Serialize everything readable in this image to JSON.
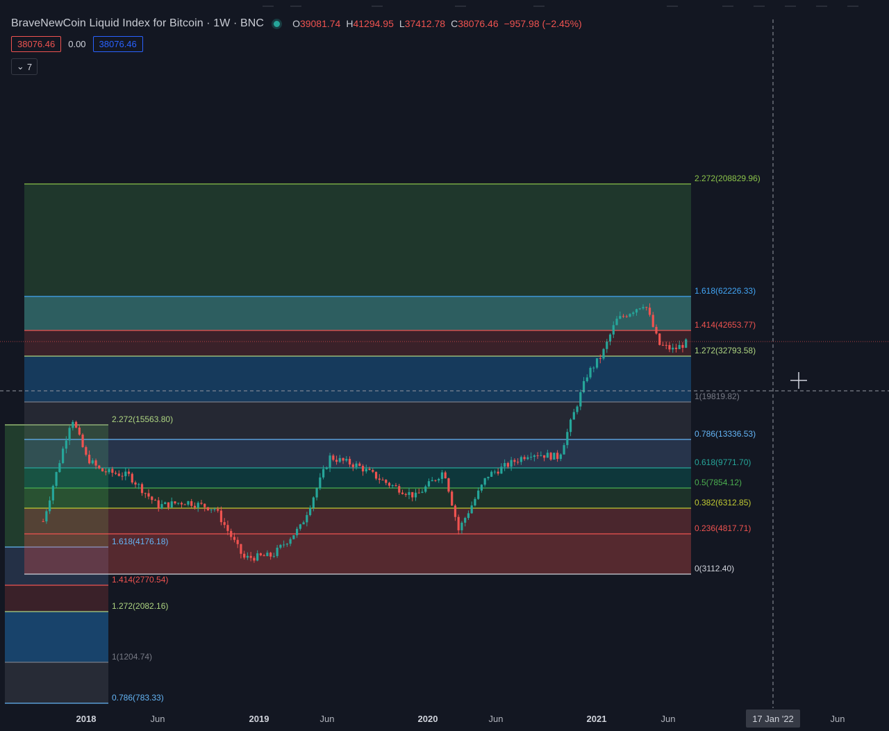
{
  "legend": {
    "title": "BraveNewCoin Liquid Index for Bitcoin · 1W · BNC",
    "open_key": "O",
    "open": "39081.74",
    "high_key": "H",
    "high": "41294.95",
    "low_key": "L",
    "low": "37412.78",
    "close_key": "C",
    "close": "38076.46",
    "change": "−957.98 (−2.45%)"
  },
  "indicator": {
    "value1": "38076.46",
    "value2": "0.00",
    "value3": "38076.46"
  },
  "collapse": {
    "chevron": "⌄",
    "count": "7"
  },
  "time_axis": {
    "labels": [
      "2018",
      "Jun",
      "2019",
      "Jun",
      "2020",
      "Jun",
      "2021",
      "Jun",
      "Jun"
    ],
    "crosshair_date": "17 Jan '22"
  },
  "colors": {
    "background": "#131722",
    "up": "#26a69a",
    "down": "#ef5350"
  },
  "fib_large": [
    {
      "label": "2.272(208829.96)",
      "color": "#8bc34a"
    },
    {
      "label": "1.618(62226.33)",
      "color": "#42a5f5"
    },
    {
      "label": "1.414(42653.77)",
      "color": "#ef5350"
    },
    {
      "label": "1.272(32793.58)",
      "color": "#aed581"
    },
    {
      "label": "1(19819.82)",
      "color": "#787b86"
    },
    {
      "label": "0.786(13336.53)",
      "color": "#64b5f6"
    },
    {
      "label": "0.618(9771.70)",
      "color": "#26a69a"
    },
    {
      "label": "0.5(7854.12)",
      "color": "#4caf50"
    },
    {
      "label": "0.382(6312.85)",
      "color": "#c0ca33"
    },
    {
      "label": "0.236(4817.71)",
      "color": "#ef5350"
    },
    {
      "label": "0(3112.40)",
      "color": "#d1d4dc"
    }
  ],
  "fib_small": [
    {
      "label": "2.272(15563.80)",
      "color": "#aed581"
    },
    {
      "label": "1.618(4176.18)",
      "color": "#64b5f6"
    },
    {
      "label": "1.414(2770.54)",
      "color": "#ef5350"
    },
    {
      "label": "1.272(2082.16)",
      "color": "#aed581"
    },
    {
      "label": "1(1204.74)",
      "color": "#787b86"
    },
    {
      "label": "0.786(783.33)",
      "color": "#64b5f6"
    }
  ],
  "chart_data": {
    "type": "candlestick",
    "symbol": "BraveNewCoin Liquid Index for Bitcoin",
    "interval": "1W",
    "x_ticks": [
      "2018",
      "Jun",
      "2019",
      "Jun",
      "2020",
      "Jun",
      "2021",
      "Jun",
      "17 Jan '22",
      "Jun"
    ],
    "close_path": [
      [
        "2017-10",
        5500
      ],
      [
        "2017-12",
        17000
      ],
      [
        "2018-01",
        11000
      ],
      [
        "2018-02",
        9500
      ],
      [
        "2018-04",
        9000
      ],
      [
        "2018-06",
        6500
      ],
      [
        "2018-08",
        6800
      ],
      [
        "2018-10",
        6300
      ],
      [
        "2018-12",
        3700
      ],
      [
        "2019-02",
        3800
      ],
      [
        "2019-04",
        5200
      ],
      [
        "2019-06",
        11000
      ],
      [
        "2019-08",
        10000
      ],
      [
        "2019-10",
        8300
      ],
      [
        "2019-12",
        7200
      ],
      [
        "2020-02",
        9500
      ],
      [
        "2020-03",
        5000
      ],
      [
        "2020-05",
        9000
      ],
      [
        "2020-08",
        11500
      ],
      [
        "2020-10",
        11000
      ],
      [
        "2020-12",
        27000
      ],
      [
        "2021-01",
        33000
      ],
      [
        "2021-02",
        48000
      ],
      [
        "2021-04",
        58000
      ],
      [
        "2021-05",
        37000
      ],
      [
        "2021-06",
        35000
      ],
      [
        "2021-07",
        38076.46
      ]
    ],
    "last_close": 38076.46
  }
}
